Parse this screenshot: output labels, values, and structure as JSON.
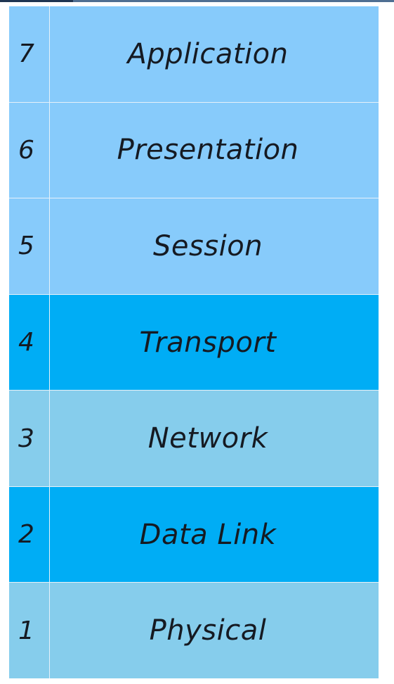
{
  "layers": [
    {
      "number": "7",
      "name": "Application",
      "color": "#87cbfb"
    },
    {
      "number": "6",
      "name": "Presentation",
      "color": "#87cbfb"
    },
    {
      "number": "5",
      "name": "Session",
      "color": "#87cbfb"
    },
    {
      "number": "4",
      "name": "Transport",
      "color": "#00adf5"
    },
    {
      "number": "3",
      "name": "Network",
      "color": "#86cdec"
    },
    {
      "number": "2",
      "name": "Data Link",
      "color": "#00adf5"
    },
    {
      "number": "1",
      "name": "Physical",
      "color": "#86cdec"
    }
  ]
}
